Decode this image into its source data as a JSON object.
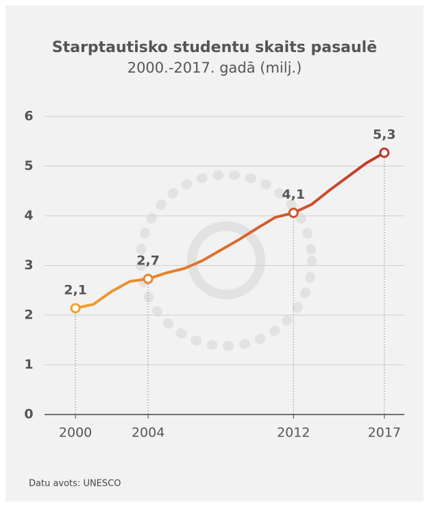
{
  "chart_data": {
    "type": "line",
    "title": "Starptautisko studentu skaits pasaulē",
    "subtitle": "2000.-2017. gadā (milj.)",
    "source": "Datu avots: UNESCO",
    "x": [
      2000,
      2001,
      2002,
      2003,
      2004,
      2005,
      2006,
      2007,
      2008,
      2009,
      2010,
      2011,
      2012,
      2013,
      2014,
      2015,
      2016,
      2017
    ],
    "values": [
      2.14,
      2.22,
      2.48,
      2.68,
      2.73,
      2.85,
      2.94,
      3.1,
      3.31,
      3.52,
      3.75,
      3.97,
      4.06,
      4.23,
      4.52,
      4.79,
      5.06,
      5.27
    ],
    "value_labels": [
      "2,1",
      null,
      null,
      null,
      "2,7",
      null,
      null,
      null,
      null,
      null,
      null,
      null,
      "4,1",
      null,
      null,
      null,
      null,
      "5,3"
    ],
    "gradient": [
      "#f2a12e",
      "#c0362c"
    ],
    "xlim": [
      1998.3,
      2018.1
    ],
    "xticks": [
      2000,
      2004,
      2012,
      2017
    ],
    "ylim": [
      0,
      6
    ],
    "yticks": [
      0,
      1,
      2,
      3,
      4,
      5,
      6
    ],
    "grid": true
  }
}
